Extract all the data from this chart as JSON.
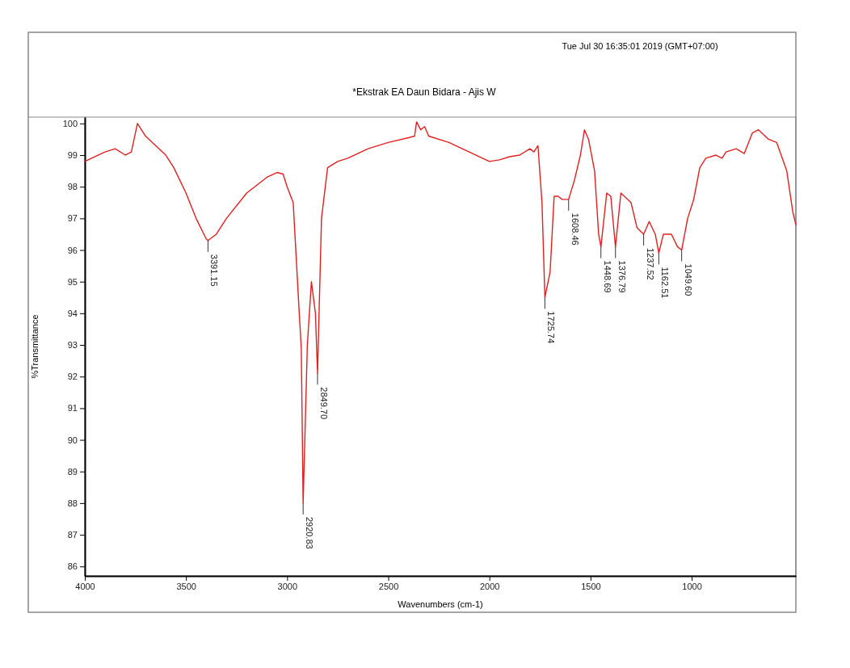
{
  "chart_data": {
    "type": "line",
    "title": "*Ekstrak EA Daun Bidara - Ajis W",
    "xlabel": "Wavenumbers (cm-1)",
    "ylabel": "%Transmittance",
    "annotations": [
      "Tue Jul 30 16:35:01 2019 (GMT+07:00)",
      {
        "text": "3391.15",
        "x": 3391.15,
        "y": 96.3
      },
      {
        "text": "2920.83",
        "x": 2920.83,
        "y": 88.0
      },
      {
        "text": "2849.70",
        "x": 2849.7,
        "y": 92.1
      },
      {
        "text": "1725.74",
        "x": 1725.74,
        "y": 94.5
      },
      {
        "text": "1608.46",
        "x": 1608.46,
        "y": 97.6
      },
      {
        "text": "1448.69",
        "x": 1448.69,
        "y": 96.1
      },
      {
        "text": "1376.79",
        "x": 1376.79,
        "y": 96.1
      },
      {
        "text": "1237.52",
        "x": 1237.52,
        "y": 96.5
      },
      {
        "text": "1162.51",
        "x": 1162.51,
        "y": 95.9
      },
      {
        "text": "1049.60",
        "x": 1049.6,
        "y": 96.0
      }
    ],
    "x": [
      4000,
      3950,
      3900,
      3850,
      3800,
      3770,
      3740,
      3700,
      3650,
      3600,
      3560,
      3500,
      3450,
      3400,
      3391.15,
      3350,
      3300,
      3200,
      3100,
      3050,
      3020,
      3000,
      2970,
      2940,
      2930,
      2920.83,
      2900,
      2880,
      2860,
      2849.7,
      2830,
      2800,
      2750,
      2700,
      2600,
      2500,
      2400,
      2370,
      2360,
      2340,
      2320,
      2300,
      2200,
      2100,
      2000,
      1950,
      1900,
      1850,
      1800,
      1780,
      1760,
      1740,
      1725.74,
      1700,
      1680,
      1660,
      1640,
      1608.46,
      1580,
      1550,
      1530,
      1510,
      1480,
      1460,
      1448.69,
      1420,
      1400,
      1376.79,
      1350,
      1300,
      1270,
      1237.52,
      1210,
      1180,
      1162.51,
      1140,
      1100,
      1070,
      1049.6,
      1020,
      990,
      960,
      930,
      880,
      850,
      830,
      780,
      740,
      700,
      670,
      620,
      580,
      530,
      500,
      485
    ],
    "series": [
      {
        "color": "#e02020",
        "values": [
          98.8,
          98.95,
          99.1,
          99.2,
          99.0,
          99.1,
          100.0,
          99.6,
          99.3,
          99.0,
          98.6,
          97.8,
          97.0,
          96.35,
          96.3,
          96.5,
          97.0,
          97.8,
          98.3,
          98.45,
          98.4,
          98.0,
          97.5,
          94.0,
          92.9,
          88.0,
          93.0,
          95.0,
          94.0,
          92.1,
          97.0,
          98.6,
          98.8,
          98.9,
          99.2,
          99.4,
          99.55,
          99.6,
          100.05,
          99.8,
          99.9,
          99.6,
          99.4,
          99.1,
          98.8,
          98.85,
          98.95,
          99.0,
          99.2,
          99.1,
          99.3,
          97.5,
          94.5,
          95.3,
          97.7,
          97.7,
          97.6,
          97.6,
          98.2,
          99.0,
          99.8,
          99.5,
          98.5,
          96.5,
          96.1,
          97.8,
          97.7,
          96.1,
          97.8,
          97.5,
          96.7,
          96.5,
          96.9,
          96.5,
          95.9,
          96.5,
          96.5,
          96.1,
          96.0,
          97.0,
          97.6,
          98.6,
          98.9,
          99.0,
          98.9,
          99.1,
          99.2,
          99.05,
          99.7,
          99.8,
          99.5,
          99.4,
          98.5,
          97.2,
          96.8
        ]
      }
    ],
    "xlim": [
      4000,
      485
    ],
    "ylim": [
      85.7,
      100.2
    ],
    "xticks": [
      4000,
      3500,
      3000,
      2500,
      2000,
      1500,
      1000
    ],
    "yticks": [
      86,
      87,
      88,
      89,
      90,
      91,
      92,
      93,
      94,
      95,
      96,
      97,
      98,
      99,
      100
    ],
    "grid": false,
    "marker": "none",
    "line_style": "solid"
  }
}
